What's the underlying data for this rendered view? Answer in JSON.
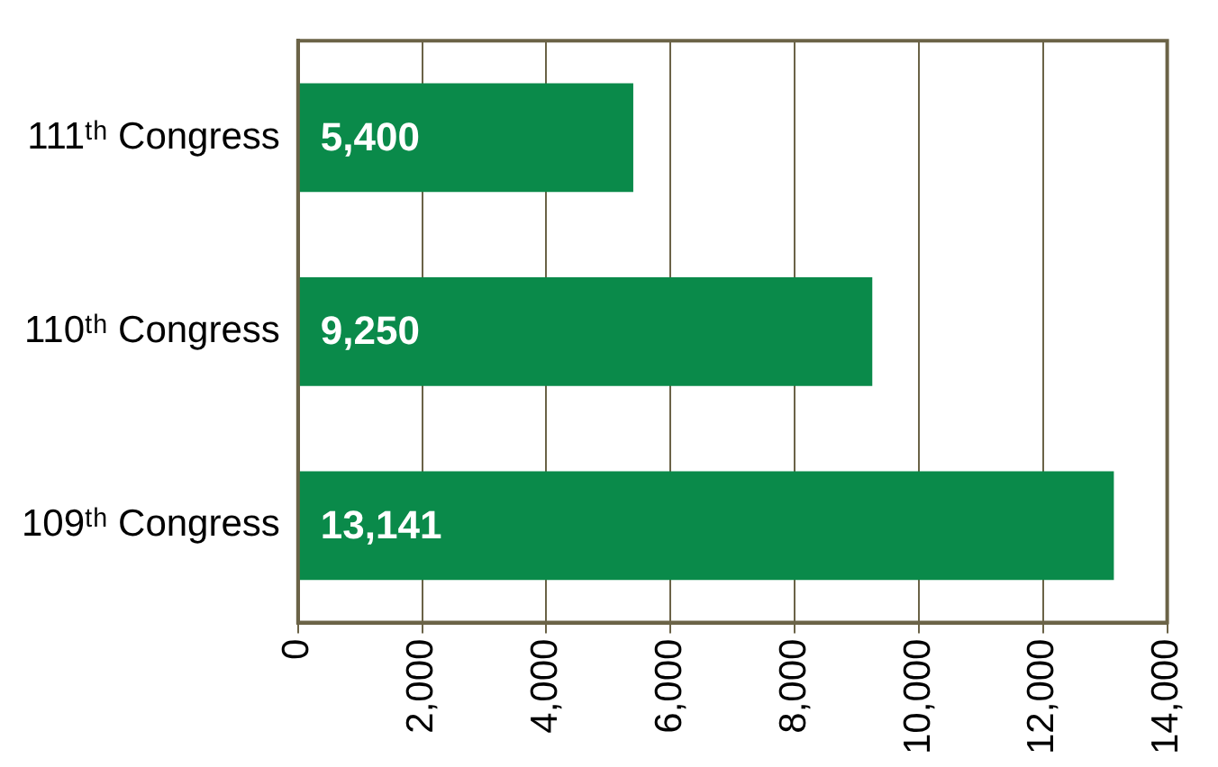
{
  "chart_data": {
    "type": "bar",
    "orientation": "horizontal",
    "categories": [
      "111ᵗʰ Congress",
      "110ᵗʰ Congress",
      "109ᵗʰ Congress"
    ],
    "values": [
      5400,
      9250,
      13141
    ],
    "color": "#0a8a4a",
    "xlim": [
      0,
      14000
    ],
    "xticks": [
      0,
      {
        "value": 2000,
        "label": "2,000"
      },
      {
        "value": 4000,
        "label": "4,000"
      },
      {
        "value": 6000,
        "label": "6,000"
      },
      {
        "value": 8000,
        "label": "8,000"
      },
      {
        "value": 10000,
        "label": "10,000"
      },
      {
        "value": 12000,
        "label": "12,000"
      },
      {
        "value": 14000,
        "label": "14,000"
      }
    ],
    "value_labels": [
      "5,400",
      "9,250",
      "13,141"
    ],
    "grid": "x",
    "legend": false
  }
}
